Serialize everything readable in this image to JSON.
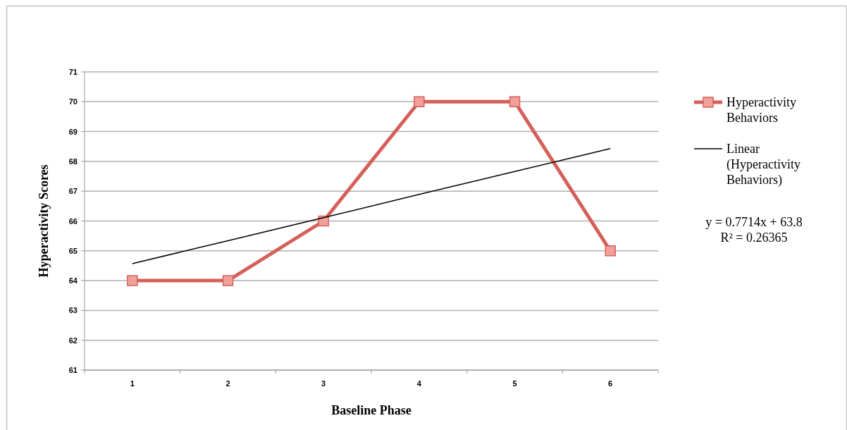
{
  "chart_data": {
    "type": "line",
    "xlabel": "Baseline Phase",
    "ylabel": "Hyperactivity Scores",
    "categories": [
      "1",
      "2",
      "3",
      "4",
      "5",
      "6"
    ],
    "series": [
      {
        "name": "Hyperactivity Behaviors",
        "color": "#d4605a",
        "values": [
          64,
          64,
          66,
          70,
          70,
          65
        ],
        "marker": "square"
      },
      {
        "name": "Linear (Hyperactivity Behaviors)",
        "color": "#000000",
        "values": [
          64.57,
          65.34,
          66.11,
          66.89,
          67.66,
          68.43
        ],
        "marker": "none"
      }
    ],
    "ylim": [
      61,
      71
    ],
    "yticks": [
      61,
      62,
      63,
      64,
      65,
      66,
      67,
      68,
      69,
      70,
      71
    ],
    "grid": "y",
    "legend": "right",
    "annotations": [
      "y = 0.7714x + 63.8",
      "R² = 0.26365"
    ]
  }
}
